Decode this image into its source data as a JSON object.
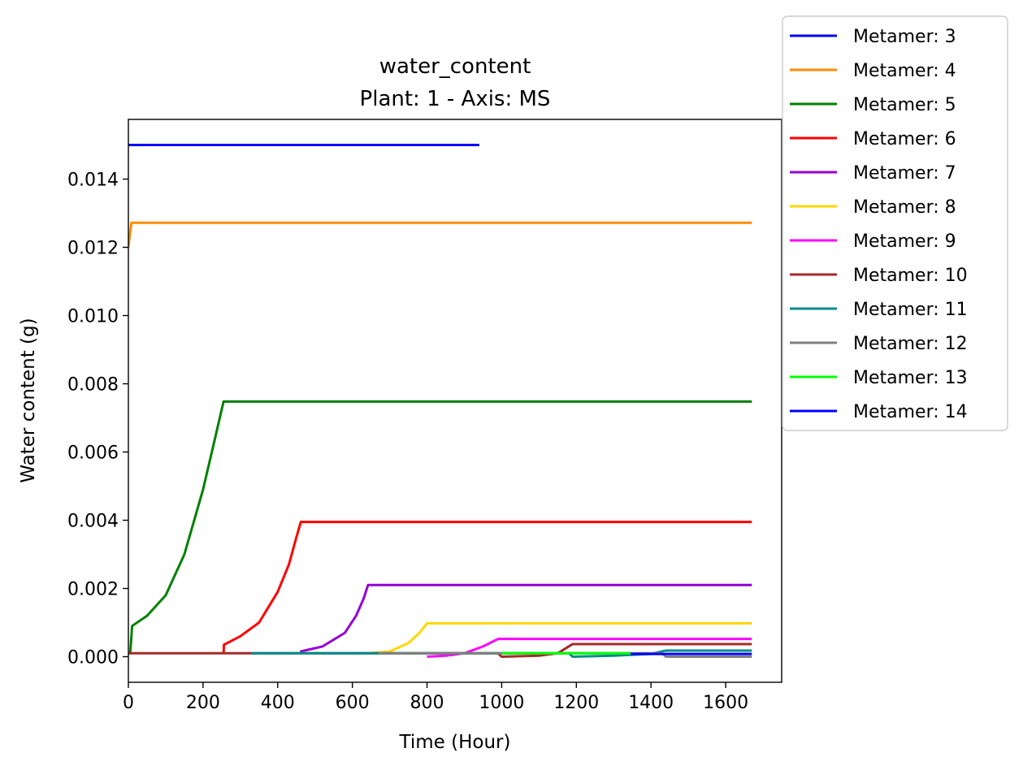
{
  "chart_data": {
    "type": "line",
    "title": "water_content",
    "subtitle": "Plant: 1 - Axis: MS",
    "xlabel": "Time (Hour)",
    "ylabel": "Water content (g)",
    "xlim": [
      0,
      1750
    ],
    "ylim": [
      -0.00075,
      0.01575
    ],
    "xticks": [
      0,
      200,
      400,
      600,
      800,
      1000,
      1200,
      1400,
      1600
    ],
    "yticks": [
      0.0,
      0.002,
      0.004,
      0.006,
      0.008,
      0.01,
      0.012,
      0.014
    ],
    "ytick_labels": [
      "0.000",
      "0.002",
      "0.004",
      "0.006",
      "0.008",
      "0.010",
      "0.012",
      "0.014"
    ],
    "grid": false,
    "legend_position": "outside-top-right",
    "series": [
      {
        "name": "Metamer: 3",
        "color": "#0000ff",
        "x": [
          0,
          940
        ],
        "y": [
          0.015,
          0.015
        ]
      },
      {
        "name": "Metamer: 4",
        "color": "#ff8c00",
        "x": [
          0,
          8,
          1670
        ],
        "y": [
          0.012,
          0.01272,
          0.01272
        ]
      },
      {
        "name": "Metamer: 5",
        "color": "#008000",
        "x": [
          0,
          5,
          10,
          50,
          100,
          150,
          200,
          230,
          255,
          1670
        ],
        "y": [
          0.0001,
          0.0001,
          0.0009,
          0.0012,
          0.0018,
          0.003,
          0.0049,
          0.0063,
          0.00748,
          0.00748
        ]
      },
      {
        "name": "Metamer: 6",
        "color": "#ff0000",
        "x": [
          255,
          256,
          300,
          350,
          400,
          430,
          450,
          462,
          1670
        ],
        "y": [
          0.0001,
          0.00035,
          0.0006,
          0.001,
          0.0019,
          0.0027,
          0.0035,
          0.00395,
          0.00395
        ]
      },
      {
        "name": "Metamer: 7",
        "color": "#9400d3",
        "x": [
          460,
          520,
          580,
          610,
          630,
          642,
          1670
        ],
        "y": [
          0.00015,
          0.0003,
          0.0007,
          0.0012,
          0.0017,
          0.0021,
          0.0021
        ]
      },
      {
        "name": "Metamer: 8",
        "color": "#ffd700",
        "x": [
          640,
          700,
          750,
          780,
          800,
          1670
        ],
        "y": [
          0.0001,
          0.00015,
          0.0004,
          0.0007,
          0.00098,
          0.00098
        ]
      },
      {
        "name": "Metamer: 9",
        "color": "#ff00ff",
        "x": [
          800,
          850,
          900,
          950,
          990,
          1670
        ],
        "y": [
          0.0,
          3e-05,
          0.0001,
          0.0003,
          0.00052,
          0.00052
        ]
      },
      {
        "name": "Metamer: 10",
        "color": "#a52a2a",
        "x": [
          0,
          330,
          990,
          1000,
          1100,
          1150,
          1190,
          1670
        ],
        "y": [
          0.0001,
          0.0001,
          0.0001,
          0.0,
          3e-05,
          0.0001,
          0.00037,
          0.00037
        ]
      },
      {
        "name": "Metamer: 11",
        "color": "#008b8b",
        "x": [
          330,
          670,
          1180,
          1190,
          1300,
          1400,
          1440,
          1670
        ],
        "y": [
          0.0001,
          0.0001,
          0.0001,
          0.0,
          3e-05,
          8e-05,
          0.00018,
          0.00018
        ]
      },
      {
        "name": "Metamer: 12",
        "color": "#808080",
        "x": [
          670,
          1000,
          1430,
          1440,
          1670
        ],
        "y": [
          0.0001,
          0.0001,
          0.0001,
          0.0,
          0.0
        ]
      },
      {
        "name": "Metamer: 13",
        "color": "#00ff00",
        "x": [
          1000,
          1345
        ],
        "y": [
          0.0001,
          0.0001
        ]
      },
      {
        "name": "Metamer: 14",
        "color": "#0000ff",
        "x": [
          1345,
          1670
        ],
        "y": [
          8e-05,
          8e-05
        ]
      }
    ]
  }
}
